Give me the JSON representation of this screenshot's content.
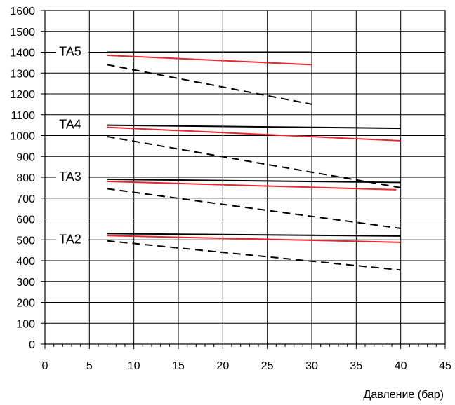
{
  "chart_data": {
    "type": "line",
    "title": "",
    "xlabel": "Давление (бар)",
    "ylabel": "",
    "xlim": [
      0,
      45
    ],
    "ylim": [
      0,
      1600
    ],
    "x_ticks": [
      "0",
      "5",
      "10",
      "15",
      "20",
      "25",
      "30",
      "35",
      "40",
      "45"
    ],
    "y_ticks": [
      "0",
      "100",
      "200",
      "300",
      "400",
      "500",
      "600",
      "700",
      "800",
      "900",
      "1000",
      "1100",
      "1200",
      "1300",
      "1400",
      "1500",
      "1600"
    ],
    "grid": true,
    "colors": {
      "black": "#000000",
      "red": "#e8262c",
      "grid": "#000000"
    },
    "groups": [
      {
        "label": "TA5",
        "label_at": [
          0.8,
          1400
        ],
        "lines": [
          {
            "style": "solid",
            "color": "black",
            "points": [
              [
                7,
                1400
              ],
              [
                30,
                1400
              ]
            ]
          },
          {
            "style": "solid",
            "color": "red",
            "points": [
              [
                7,
                1385
              ],
              [
                30,
                1340
              ]
            ]
          },
          {
            "style": "dashed",
            "color": "black",
            "points": [
              [
                7,
                1340
              ],
              [
                30,
                1150
              ]
            ]
          }
        ]
      },
      {
        "label": "TA4",
        "label_at": [
          0.8,
          1050
        ],
        "lines": [
          {
            "style": "solid",
            "color": "black",
            "points": [
              [
                7,
                1050
              ],
              [
                40,
                1035
              ]
            ]
          },
          {
            "style": "solid",
            "color": "red",
            "points": [
              [
                7,
                1040
              ],
              [
                40,
                975
              ]
            ]
          },
          {
            "style": "dashed",
            "color": "black",
            "points": [
              [
                7,
                995
              ],
              [
                40,
                750
              ]
            ]
          }
        ]
      },
      {
        "label": "TA3",
        "label_at": [
          0.8,
          800
        ],
        "lines": [
          {
            "style": "solid",
            "color": "black",
            "points": [
              [
                7,
                790
              ],
              [
                40,
                775
              ]
            ]
          },
          {
            "style": "solid",
            "color": "red",
            "points": [
              [
                7,
                780
              ],
              [
                39.5,
                740
              ]
            ]
          },
          {
            "style": "dashed",
            "color": "black",
            "points": [
              [
                7,
                745
              ],
              [
                40,
                555
              ]
            ]
          }
        ]
      },
      {
        "label": "TA2",
        "label_at": [
          0.8,
          500
        ],
        "lines": [
          {
            "style": "solid",
            "color": "black",
            "points": [
              [
                7,
                530
              ],
              [
                40,
                518
              ]
            ]
          },
          {
            "style": "solid",
            "color": "red",
            "points": [
              [
                7,
                520
              ],
              [
                40,
                488
              ]
            ]
          },
          {
            "style": "dashed",
            "color": "black",
            "points": [
              [
                7,
                495
              ],
              [
                40,
                355
              ]
            ]
          }
        ]
      }
    ]
  }
}
